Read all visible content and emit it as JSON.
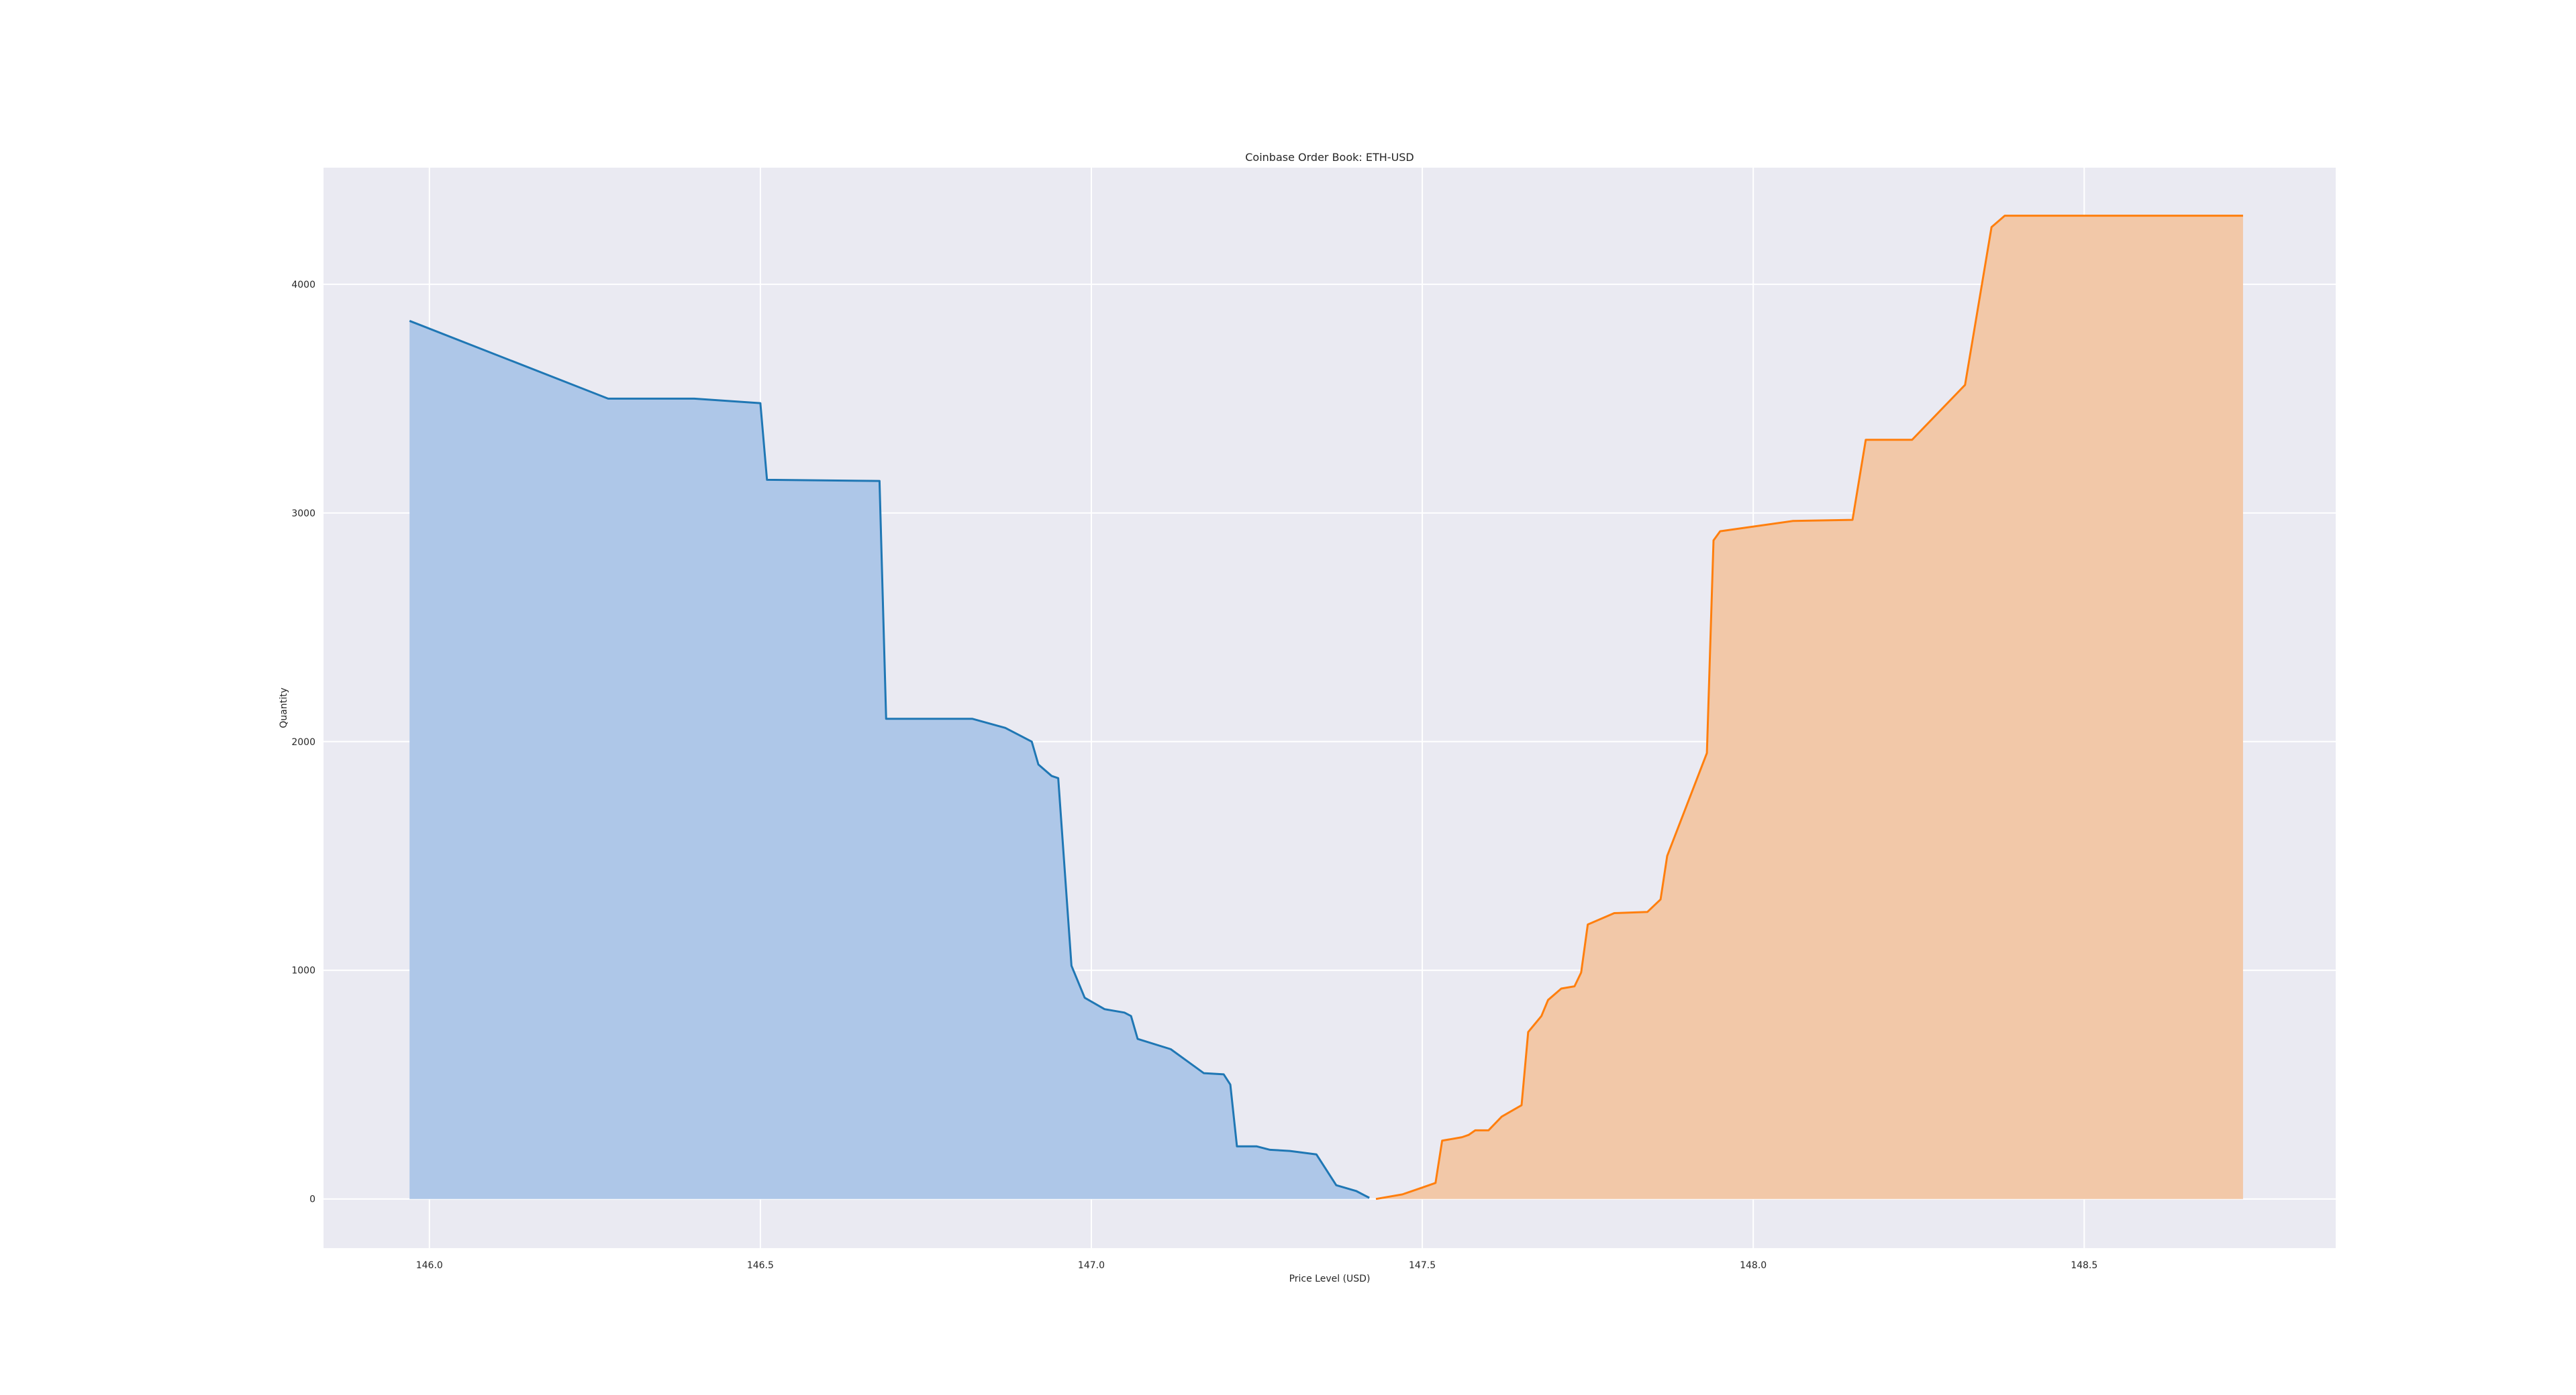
{
  "chart_data": {
    "type": "area",
    "title": "Coinbase Order Book: ETH-USD",
    "xlabel": "Price Level (USD)",
    "ylabel": "Quantity",
    "xlim": [
      145.84,
      148.88
    ],
    "ylim": [
      -215,
      4510
    ],
    "x_ticks": [
      146.0,
      146.5,
      147.0,
      147.5,
      148.0,
      148.5
    ],
    "x_tick_labels": [
      "146.0",
      "146.5",
      "147.0",
      "147.5",
      "148.0",
      "148.5"
    ],
    "y_ticks": [
      0,
      1000,
      2000,
      3000,
      4000
    ],
    "y_tick_labels": [
      "0",
      "1000",
      "2000",
      "3000",
      "4000"
    ],
    "grid": true,
    "legend": "none",
    "colors": {
      "background": "#eaeaf2",
      "grid": "#ffffff",
      "bid_line": "#1f77b4",
      "bid_fill": "#aec7e8",
      "ask_line": "#ff7f0e",
      "ask_fill": "#f2c8a8"
    },
    "series": [
      {
        "side": "bid",
        "x": [
          145.97,
          146.27,
          146.4,
          146.5,
          146.51,
          146.68,
          146.69,
          146.82,
          146.87,
          146.91,
          146.92,
          146.94,
          146.95,
          146.97,
          146.99,
          147.02,
          147.05,
          147.06,
          147.07,
          147.12,
          147.17,
          147.2,
          147.21,
          147.22,
          147.25,
          147.27,
          147.3,
          147.34,
          147.37,
          147.4,
          147.42
        ],
        "y": [
          3840,
          3500,
          3500,
          3480,
          3145,
          3140,
          2100,
          2100,
          2060,
          2000,
          1900,
          1850,
          1840,
          1020,
          880,
          830,
          815,
          800,
          700,
          655,
          550,
          545,
          500,
          230,
          230,
          215,
          210,
          195,
          60,
          35,
          5
        ]
      },
      {
        "side": "ask",
        "x": [
          147.43,
          147.47,
          147.5,
          147.52,
          147.53,
          147.56,
          147.57,
          147.58,
          147.6,
          147.61,
          147.62,
          147.65,
          147.66,
          147.68,
          147.69,
          147.71,
          147.73,
          147.74,
          147.75,
          147.79,
          147.84,
          147.86,
          147.87,
          147.93,
          147.94,
          147.95,
          148.06,
          148.15,
          148.17,
          148.24,
          148.32,
          148.36,
          148.38,
          148.74
        ],
        "y": [
          0,
          20,
          50,
          70,
          255,
          270,
          280,
          300,
          300,
          330,
          360,
          410,
          730,
          800,
          870,
          920,
          930,
          990,
          1200,
          1250,
          1255,
          1310,
          1500,
          1950,
          2880,
          2920,
          2965,
          2970,
          3320,
          3320,
          3560,
          4250,
          4300,
          4300
        ]
      }
    ]
  }
}
